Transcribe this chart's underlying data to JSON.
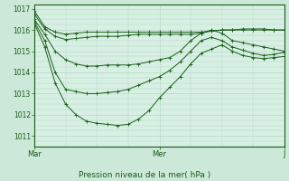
{
  "bg_color": "#cce8d8",
  "plot_bg": "#d8f0e4",
  "grid_color": "#b0d4c0",
  "line_color": "#1a5c1a",
  "marker": "+",
  "title": "Pression niveau de la mer( hPa )",
  "ylim": [
    1010.5,
    1017.2
  ],
  "yticks": [
    1011,
    1012,
    1013,
    1014,
    1015,
    1016,
    1017
  ],
  "xtick_pos": [
    0.0,
    0.5,
    1.0
  ],
  "xtick_labels": [
    "Mar",
    "Mer",
    "J"
  ],
  "series": [
    [
      1016.9,
      1016.15,
      1015.9,
      1015.8,
      1015.85,
      1015.9,
      1015.9,
      1015.9,
      1015.9,
      1015.9,
      1015.9,
      1015.9,
      1015.9,
      1015.9,
      1015.9,
      1015.9,
      1015.9,
      1015.95,
      1016.0,
      1016.0,
      1016.05,
      1016.05,
      1016.05,
      1016.0,
      1016.0
    ],
    [
      1016.75,
      1016.05,
      1015.7,
      1015.55,
      1015.6,
      1015.65,
      1015.7,
      1015.7,
      1015.7,
      1015.75,
      1015.8,
      1015.8,
      1015.8,
      1015.8,
      1015.8,
      1015.8,
      1015.85,
      1015.95,
      1016.0,
      1016.0,
      1016.0,
      1016.0,
      1016.0,
      1016.0,
      1016.0
    ],
    [
      1016.5,
      1015.8,
      1015.0,
      1014.6,
      1014.4,
      1014.3,
      1014.3,
      1014.35,
      1014.35,
      1014.35,
      1014.4,
      1014.5,
      1014.6,
      1014.7,
      1015.0,
      1015.5,
      1015.85,
      1016.0,
      1015.85,
      1015.5,
      1015.4,
      1015.3,
      1015.2,
      1015.1,
      1015.0
    ],
    [
      1016.4,
      1015.5,
      1014.0,
      1013.2,
      1013.1,
      1013.0,
      1013.0,
      1013.05,
      1013.1,
      1013.2,
      1013.4,
      1013.6,
      1013.8,
      1014.1,
      1014.5,
      1015.0,
      1015.5,
      1015.65,
      1015.5,
      1015.2,
      1015.05,
      1014.9,
      1014.8,
      1014.85,
      1014.95
    ],
    [
      1016.3,
      1015.2,
      1013.5,
      1012.5,
      1012.0,
      1011.7,
      1011.6,
      1011.55,
      1011.5,
      1011.55,
      1011.8,
      1012.2,
      1012.8,
      1013.3,
      1013.8,
      1014.4,
      1014.9,
      1015.1,
      1015.3,
      1015.0,
      1014.8,
      1014.7,
      1014.65,
      1014.7,
      1014.75
    ]
  ]
}
